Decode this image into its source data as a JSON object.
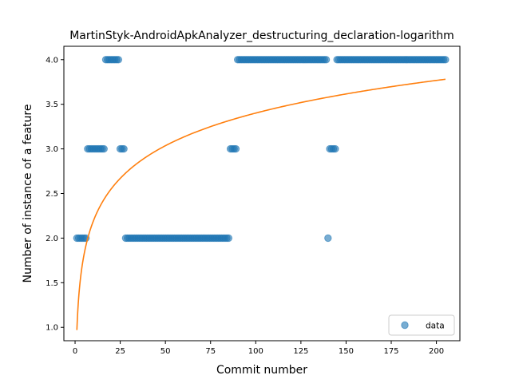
{
  "chart_data": {
    "type": "scatter",
    "title": "MartinStyk-AndroidApkAnalyzer_destructuring_declaration-logarithm",
    "xlabel": "Commit number",
    "ylabel": "Number of instance of a feature",
    "xlim": [
      -6.2,
      213
    ],
    "ylim": [
      0.85,
      4.15
    ],
    "xticks": [
      0,
      25,
      50,
      75,
      100,
      125,
      150,
      175,
      200
    ],
    "xtick_labels": [
      "0",
      "25",
      "50",
      "75",
      "100",
      "125",
      "150",
      "175",
      "200"
    ],
    "yticks": [
      1.0,
      1.5,
      2.0,
      2.5,
      3.0,
      3.5,
      4.0
    ],
    "ytick_labels": [
      "1.0",
      "1.5",
      "2.0",
      "2.5",
      "3.0",
      "3.5",
      "4.0"
    ],
    "grid": false,
    "legend": {
      "position": "lower right",
      "entries": [
        "data"
      ]
    },
    "series": [
      {
        "name": "data",
        "kind": "scatter",
        "color": "#1f77b4",
        "segments": [
          {
            "x_start": 1,
            "x_end": 6,
            "y": 2
          },
          {
            "x_start": 7,
            "x_end": 16,
            "y": 3
          },
          {
            "x_start": 17,
            "x_end": 24,
            "y": 4
          },
          {
            "x_start": 25,
            "x_end": 27,
            "y": 3
          },
          {
            "x_start": 28,
            "x_end": 85,
            "y": 2
          },
          {
            "x_start": 86,
            "x_end": 89,
            "y": 3
          },
          {
            "x_start": 90,
            "x_end": 139,
            "y": 4
          },
          {
            "x_start": 140,
            "x_end": 140,
            "y": 2
          },
          {
            "x_start": 141,
            "x_end": 144,
            "y": 3
          },
          {
            "x_start": 145,
            "x_end": 205,
            "y": 4
          }
        ]
      },
      {
        "kind": "line",
        "color": "#ff7f0e",
        "model": "logarithmic",
        "a": 0.97,
        "b": 0.528,
        "x_range": [
          1,
          205
        ]
      }
    ]
  }
}
